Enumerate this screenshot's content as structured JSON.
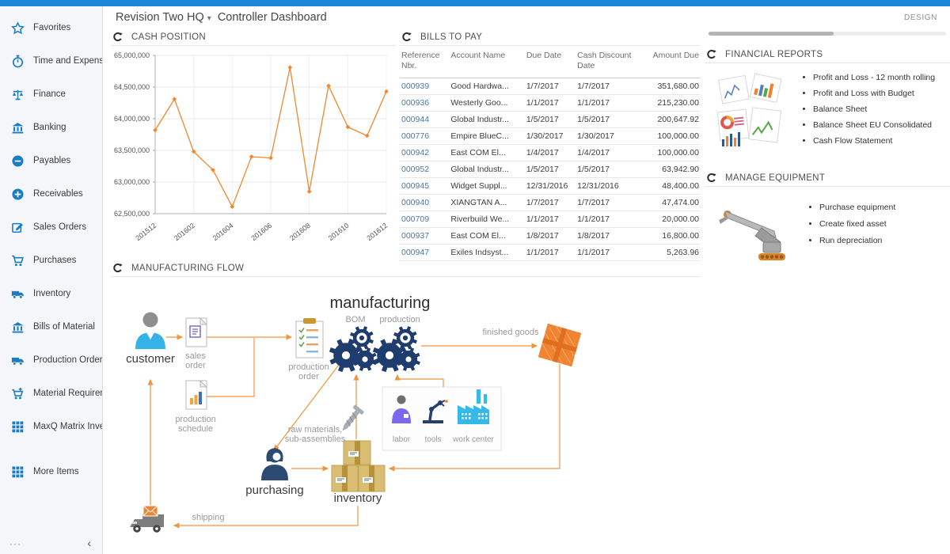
{
  "header": {
    "company": "Revision Two HQ",
    "caret_icon": "▾",
    "page_title": "Controller Dashboard",
    "design_label": "DESIGN"
  },
  "sidebar": {
    "items": [
      {
        "icon": "star-icon",
        "label": "Favorites"
      },
      {
        "icon": "stopwatch-icon",
        "label": "Time and Expenses"
      },
      {
        "icon": "scales-icon",
        "label": "Finance"
      },
      {
        "icon": "bank-icon",
        "label": "Banking"
      },
      {
        "icon": "minus-circle-icon",
        "label": "Payables"
      },
      {
        "icon": "plus-circle-icon",
        "label": "Receivables"
      },
      {
        "icon": "pencil-square-icon",
        "label": "Sales Orders"
      },
      {
        "icon": "cart-icon",
        "label": "Purchases"
      },
      {
        "icon": "truck-icon",
        "label": "Inventory"
      },
      {
        "icon": "bank-icon",
        "label": "Bills of Material"
      },
      {
        "icon": "truck-icon",
        "label": "Production Orders"
      },
      {
        "icon": "cart-plus-icon",
        "label": "Material Requirem..."
      },
      {
        "icon": "grid-icon",
        "label": "MaxQ Matrix Invent..."
      },
      {
        "icon": "grid-icon",
        "label": "More Items"
      }
    ],
    "footer": {
      "more": "···",
      "collapse": "‹"
    }
  },
  "cash_position": {
    "title": "CASH POSITION",
    "chart_data": {
      "type": "line",
      "x": [
        "201512",
        "201601",
        "201602",
        "201603",
        "201604",
        "201605",
        "201606",
        "201607",
        "201608",
        "201609",
        "201610",
        "201611",
        "201612"
      ],
      "values": [
        63820000,
        64310000,
        63480000,
        63190000,
        62610000,
        63400000,
        63380000,
        64810000,
        62850000,
        64520000,
        63870000,
        63730000,
        64430000
      ],
      "x_tick_labels": [
        "201512",
        "201602",
        "201604",
        "201606",
        "201608",
        "201610",
        "201612"
      ],
      "ylim": [
        62500000,
        65000000
      ],
      "y_step": 500000,
      "line_color": "#f5862d",
      "grid": true,
      "legend": "none"
    }
  },
  "bills_to_pay": {
    "title": "BILLS TO PAY",
    "columns": [
      "Reference Nbr.",
      "Account Name",
      "Due Date",
      "Cash Discount Date",
      "Amount Due"
    ],
    "rows": [
      [
        "000939",
        "Good Hardwa...",
        "1/7/2017",
        "1/7/2017",
        "351,680.00"
      ],
      [
        "000936",
        "Westerly Goo...",
        "1/1/2017",
        "1/1/2017",
        "215,230.00"
      ],
      [
        "000944",
        "Global Industr...",
        "1/5/2017",
        "1/5/2017",
        "200,647.92"
      ],
      [
        "000776",
        "Empire BlueC...",
        "1/30/2017",
        "1/30/2017",
        "100,000.00"
      ],
      [
        "000942",
        "East COM El...",
        "1/4/2017",
        "1/4/2017",
        "100,000.00"
      ],
      [
        "000952",
        "Global Industr...",
        "1/5/2017",
        "1/5/2017",
        "63,942.90"
      ],
      [
        "000945",
        "Widget Suppl...",
        "12/31/2016",
        "12/31/2016",
        "48,400.00"
      ],
      [
        "000940",
        "XIANGTAN A...",
        "1/7/2017",
        "1/7/2017",
        "47,474.00"
      ],
      [
        "000709",
        "Riverbuild We...",
        "1/1/2017",
        "1/1/2017",
        "20,000.00"
      ],
      [
        "000937",
        "East COM El...",
        "1/8/2017",
        "1/8/2017",
        "16,800.00"
      ],
      [
        "000947",
        "Exiles Indsyst...",
        "1/1/2017",
        "1/1/2017",
        "5,263.96"
      ]
    ]
  },
  "financial_reports": {
    "title": "FINANCIAL REPORTS",
    "links": [
      "Profit and Loss - 12 month rolling",
      "Profit and Loss with Budget",
      "Balance Sheet",
      "Balance Sheet EU Consolidated",
      "Cash Flow Statement"
    ]
  },
  "manage_equipment": {
    "title": "MANAGE EQUIPMENT",
    "links": [
      "Purchase equipment",
      "Create fixed asset",
      "Run depreciation"
    ]
  },
  "manufacturing_flow": {
    "title": "MANUFACTURING FLOW",
    "labels": {
      "manufacturing": "manufacturing",
      "bom": "BOM",
      "production": "production",
      "customer": "customer",
      "sales_order": "sales order",
      "production_order": "production order",
      "production_schedule": "production schedule",
      "finished_goods": "finished goods",
      "raw_materials": "raw materials, sub-assemblies",
      "labor": "labor",
      "tools": "tools",
      "work_center": "work center",
      "purchasing": "purchasing",
      "inventory": "inventory",
      "shipping": "shipping"
    }
  },
  "colors": {
    "topbar_blue": "#1b87d8",
    "sidebar_icon_blue": "#1a7dc2",
    "link_blue": "#4a77b4",
    "chart_orange": "#f5862d",
    "flow_arrow_orange": "#f0953f",
    "gear_navy": "#1e3c6e"
  }
}
